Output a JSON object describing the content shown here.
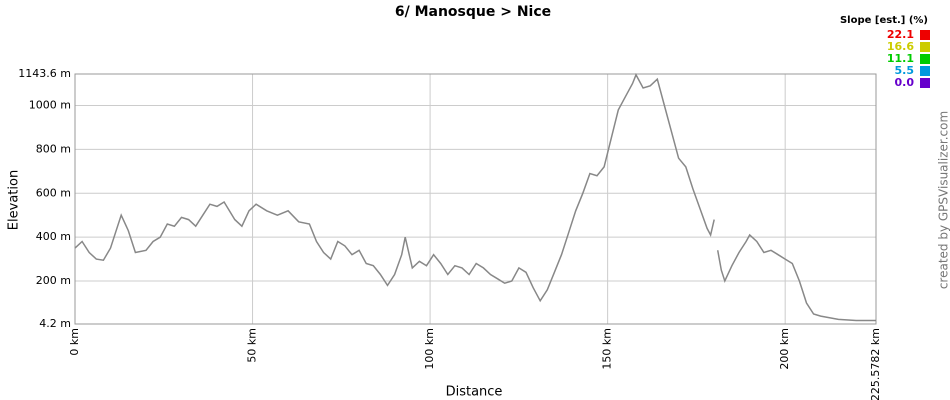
{
  "chart_data": {
    "type": "line",
    "title": "6/ Manosque > Nice",
    "x_label": "Distance",
    "y_label": "Elevation",
    "credit": "created by GPSVisualizer.com",
    "slope_legend": {
      "title": "Slope [est.] (%)",
      "items": [
        {
          "label": "22.1",
          "color": "#ee0000"
        },
        {
          "label": "16.6",
          "color": "#cccc00"
        },
        {
          "label": "11.1",
          "color": "#00cc00"
        },
        {
          "label": "5.5",
          "color": "#0099dd"
        },
        {
          "label": "0.0",
          "color": "#6600cc"
        }
      ]
    },
    "x": [
      0,
      2,
      4,
      6,
      8,
      10,
      12,
      13,
      15,
      17,
      20,
      22,
      24,
      26,
      28,
      30,
      32,
      34,
      36,
      38,
      40,
      42,
      45,
      47,
      49,
      51,
      54,
      57,
      60,
      63,
      66,
      68,
      70,
      72,
      74,
      76,
      78,
      80,
      82,
      84,
      86,
      88,
      90,
      92,
      93,
      95,
      97,
      99,
      101,
      103,
      105,
      107,
      109,
      111,
      113,
      115,
      117,
      119,
      121,
      123,
      125,
      127,
      129,
      131,
      133,
      135,
      137,
      139,
      141,
      143,
      145,
      147,
      149,
      151,
      153,
      155,
      157,
      158,
      160,
      162,
      164,
      166,
      168,
      170,
      172,
      174,
      176,
      178,
      179,
      180,
      180.2,
      181,
      182,
      183,
      185,
      187,
      189,
      190,
      192,
      194,
      196,
      198,
      200,
      202,
      204,
      206,
      208,
      210,
      215,
      220,
      225.5782
    ],
    "series": [
      {
        "name": "Elevation",
        "color": "#888888",
        "values": [
          350,
          380,
          330,
          300,
          295,
          350,
          450,
          500,
          430,
          330,
          340,
          380,
          400,
          460,
          450,
          490,
          480,
          450,
          500,
          550,
          540,
          560,
          480,
          450,
          520,
          550,
          520,
          500,
          520,
          470,
          460,
          380,
          330,
          300,
          380,
          360,
          320,
          340,
          280,
          270,
          230,
          180,
          230,
          320,
          400,
          260,
          290,
          270,
          320,
          280,
          230,
          270,
          260,
          230,
          280,
          260,
          230,
          210,
          190,
          200,
          260,
          240,
          170,
          110,
          160,
          240,
          320,
          420,
          520,
          600,
          690,
          680,
          720,
          850,
          980,
          1040,
          1100,
          1140,
          1080,
          1090,
          1120,
          1000,
          880,
          760,
          720,
          620,
          530,
          440,
          410,
          480,
          null,
          340,
          250,
          200,
          270,
          330,
          380,
          410,
          380,
          330,
          340,
          320,
          300,
          280,
          200,
          100,
          50,
          40,
          25,
          20,
          20
        ]
      }
    ],
    "xlim": [
      0,
      225.5782
    ],
    "xticks": [
      {
        "value": 0,
        "label": "0 km"
      },
      {
        "value": 50,
        "label": "50 km"
      },
      {
        "value": 100,
        "label": "100 km"
      },
      {
        "value": 150,
        "label": "150 km"
      },
      {
        "value": 200,
        "label": "200 km"
      },
      {
        "value": 225.5782,
        "label": "225.5782 km"
      }
    ],
    "ylim": [
      4.2,
      1143.6
    ],
    "yticks": [
      {
        "value": 4.2,
        "label": "4.2 m"
      },
      {
        "value": 200,
        "label": "200 m"
      },
      {
        "value": 400,
        "label": "400 m"
      },
      {
        "value": 600,
        "label": "600 m"
      },
      {
        "value": 800,
        "label": "800 m"
      },
      {
        "value": 1000,
        "label": "1000 m"
      },
      {
        "value": 1143.6,
        "label": "1143.6 m"
      }
    ],
    "grid": true
  }
}
